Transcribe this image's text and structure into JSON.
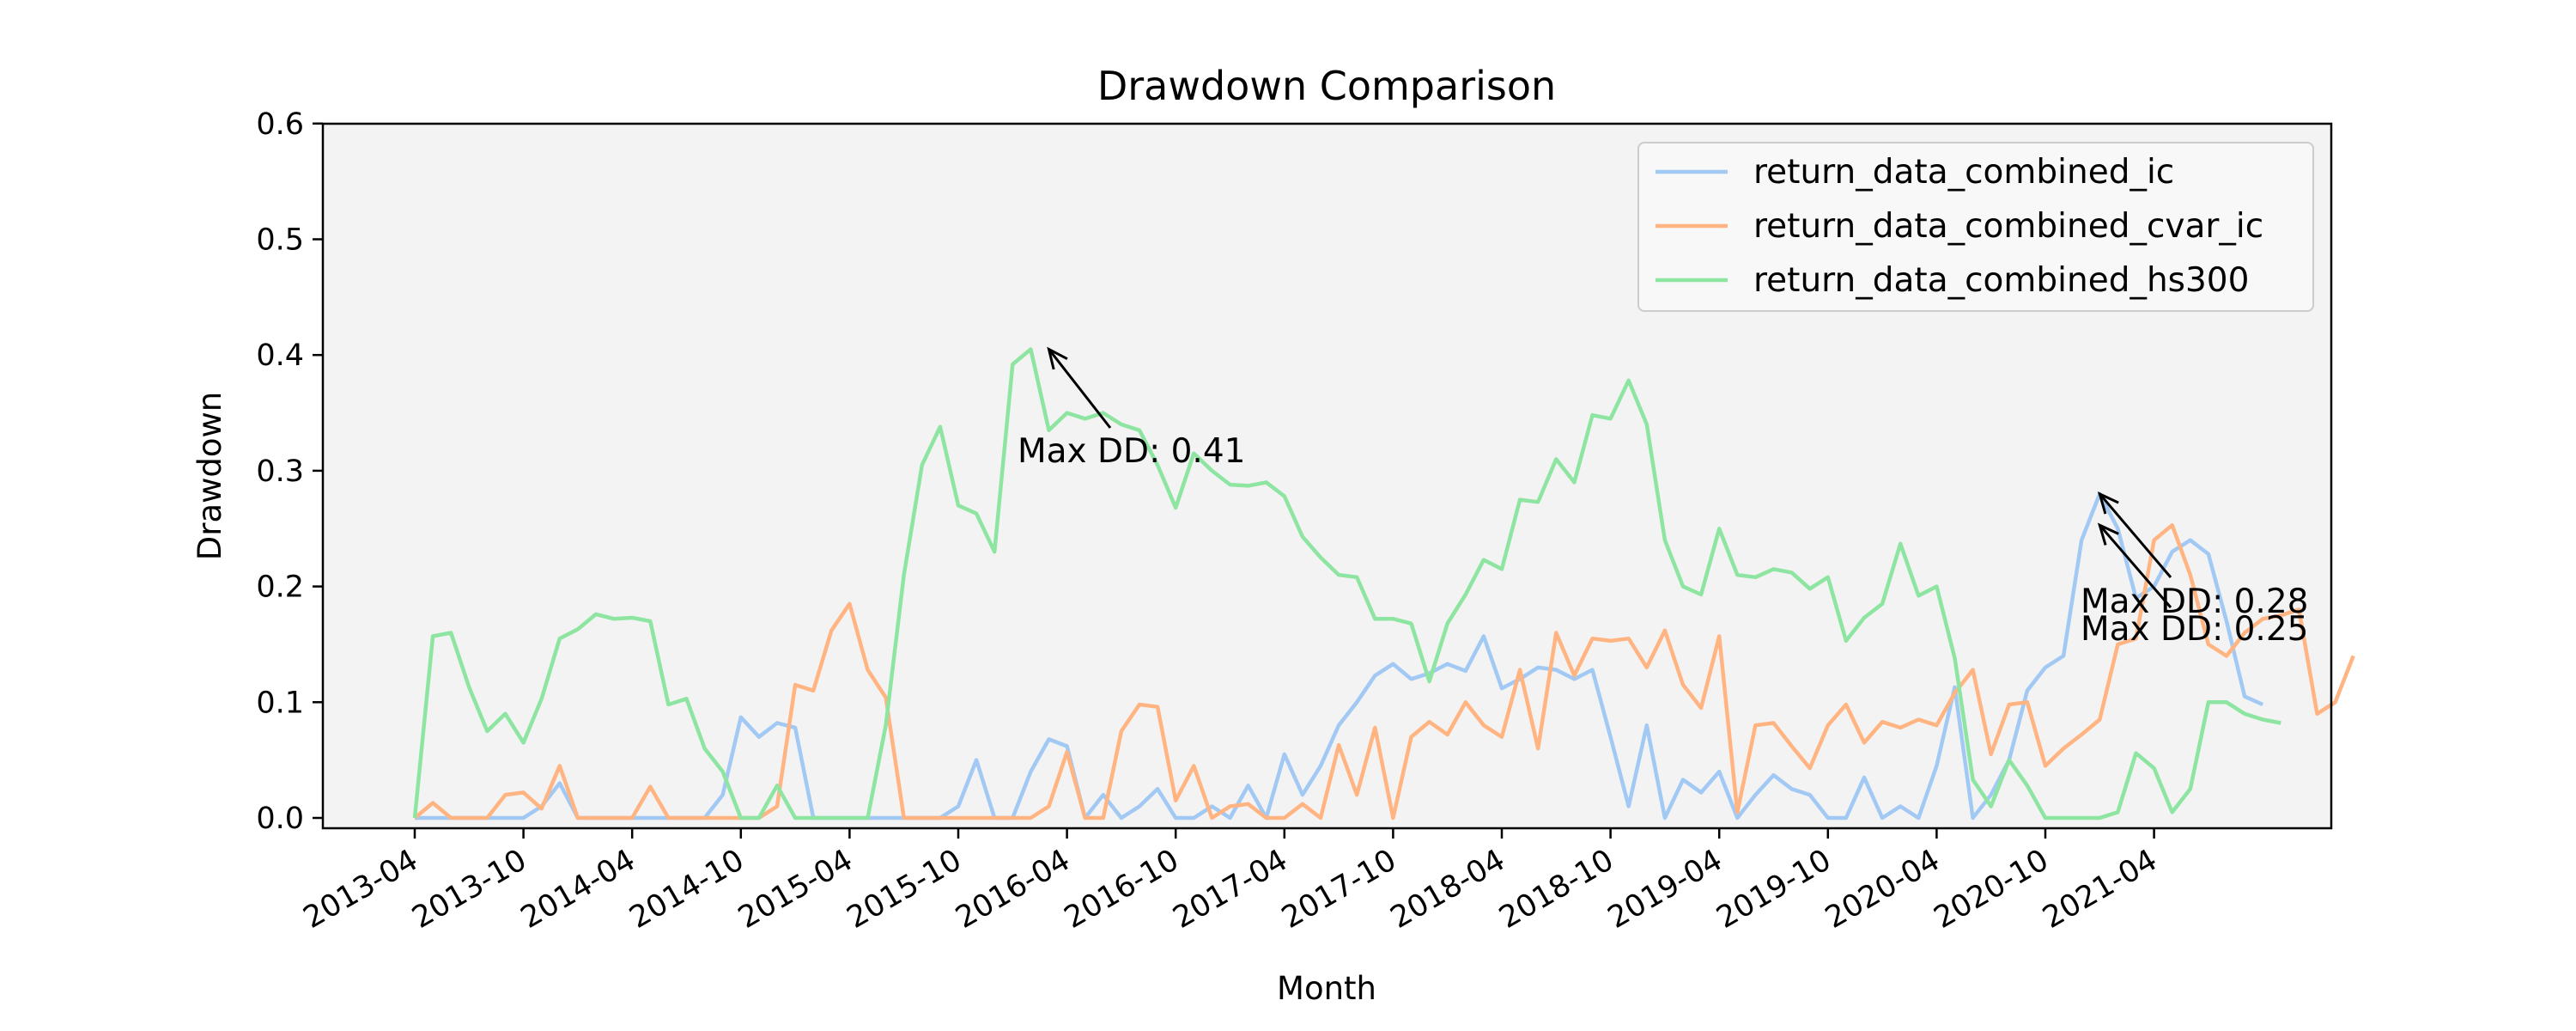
{
  "chart_data": {
    "type": "line",
    "title": "Drawdown Comparison",
    "xlabel": "Month",
    "ylabel": "Drawdown",
    "ylim": [
      0,
      0.6
    ],
    "yticks": [
      "0.0",
      "0.1",
      "0.2",
      "0.3",
      "0.4",
      "0.5",
      "0.6"
    ],
    "x_start": "2013-04",
    "xticks": [
      "2013-04",
      "2013-10",
      "2014-04",
      "2014-10",
      "2015-04",
      "2015-10",
      "2016-04",
      "2016-10",
      "2017-04",
      "2017-10",
      "2018-04",
      "2018-10",
      "2019-04",
      "2019-10",
      "2020-04",
      "2020-10",
      "2021-04"
    ],
    "legend_position": "upper right",
    "plot_background": "#f3f3f3",
    "series": [
      {
        "name": "return_data_combined_ic",
        "color": "#a1c9f4",
        "values": [
          0,
          0,
          0,
          0,
          0,
          0,
          0,
          0.01,
          0.03,
          0,
          0,
          0,
          0,
          0,
          0,
          0,
          0,
          0.02,
          0.087,
          0.07,
          0.082,
          0.078,
          0,
          0,
          0,
          0,
          0,
          0,
          0,
          0,
          0.01,
          0.05,
          0,
          0,
          0.04,
          0.068,
          0.062,
          0,
          0.02,
          0,
          0.01,
          0.025,
          0,
          0,
          0.01,
          0,
          0.028,
          0,
          0.055,
          0.02,
          0.045,
          0.08,
          0.1,
          0.123,
          0.133,
          0.12,
          0.125,
          0.133,
          0.127,
          0.157,
          0.112,
          0.12,
          0.13,
          0.128,
          0.12,
          0.128,
          0.07,
          0.01,
          0.08,
          0,
          0.033,
          0.022,
          0.04,
          0,
          0.02,
          0.037,
          0.025,
          0.02,
          0,
          0,
          0.035,
          0,
          0.01,
          0,
          0.045,
          0.113,
          0,
          0.02,
          0.05,
          0.11,
          0.13,
          0.14,
          0.24,
          0.28,
          0.25,
          0.19,
          0.2,
          0.23,
          0.24,
          0.228,
          0.17,
          0.105,
          0.098
        ]
      },
      {
        "name": "return_data_combined_cvar_ic",
        "color": "#ffb482",
        "values": [
          0,
          0.013,
          0,
          0,
          0,
          0.02,
          0.022,
          0.008,
          0.045,
          0,
          0,
          0,
          0,
          0.027,
          0,
          0,
          0,
          0,
          0,
          0,
          0.01,
          0.115,
          0.11,
          0.162,
          0.185,
          0.128,
          0.104,
          0,
          0,
          0,
          0,
          0,
          0,
          0,
          0,
          0.01,
          0.057,
          0,
          0,
          0.075,
          0.098,
          0.096,
          0.015,
          0.045,
          0,
          0.01,
          0.012,
          0,
          0,
          0.012,
          0,
          0.063,
          0.02,
          0.078,
          0,
          0.07,
          0.083,
          0.072,
          0.1,
          0.08,
          0.07,
          0.128,
          0.06,
          0.16,
          0.123,
          0.155,
          0.153,
          0.155,
          0.13,
          0.162,
          0.115,
          0.095,
          0.157,
          0.005,
          0.08,
          0.082,
          0.062,
          0.043,
          0.08,
          0.098,
          0.065,
          0.083,
          0.078,
          0.085,
          0.08,
          0.108,
          0.128,
          0.055,
          0.098,
          0.1,
          0.045,
          0.06,
          0.072,
          0.085,
          0.15,
          0.155,
          0.24,
          0.253,
          0.21,
          0.15,
          0.14,
          0.16,
          0.172,
          0.175,
          0.18,
          0.09,
          0.1,
          0.14
        ]
      },
      {
        "name": "return_data_combined_hs300",
        "color": "#8de5a1",
        "values": [
          0,
          0.157,
          0.16,
          0.113,
          0.075,
          0.09,
          0.065,
          0.103,
          0.155,
          0.163,
          0.176,
          0.172,
          0.173,
          0.17,
          0.098,
          0.103,
          0.06,
          0.04,
          0,
          0,
          0.028,
          0,
          0,
          0,
          0,
          0,
          0.08,
          0.21,
          0.305,
          0.338,
          0.27,
          0.263,
          0.23,
          0.392,
          0.405,
          0.335,
          0.35,
          0.345,
          0.35,
          0.34,
          0.335,
          0.305,
          0.268,
          0.315,
          0.3,
          0.288,
          0.287,
          0.29,
          0.278,
          0.243,
          0.225,
          0.21,
          0.208,
          0.172,
          0.172,
          0.168,
          0.118,
          0.168,
          0.193,
          0.223,
          0.215,
          0.275,
          0.273,
          0.31,
          0.29,
          0.348,
          0.345,
          0.378,
          0.34,
          0.24,
          0.2,
          0.193,
          0.25,
          0.21,
          0.208,
          0.215,
          0.212,
          0.198,
          0.208,
          0.153,
          0.173,
          0.185,
          0.237,
          0.192,
          0.2,
          0.138,
          0.033,
          0.01,
          0.05,
          0.028,
          0,
          0,
          0,
          0,
          0.005,
          0.056,
          0.043,
          0.005,
          0.025,
          0.1,
          0.1,
          0.09,
          0.085,
          0.082
        ]
      }
    ],
    "annotations": [
      {
        "text": "Max DD: 0.41",
        "series": "return_data_combined_hs300",
        "x": "2016-03",
        "y": 0.405
      },
      {
        "text": "Max DD: 0.28",
        "series": "return_data_combined_ic",
        "x": "2021-01",
        "y": 0.28
      },
      {
        "text": "Max DD: 0.25",
        "series": "return_data_combined_cvar_ic",
        "x": "2021-01",
        "y": 0.253
      }
    ]
  }
}
